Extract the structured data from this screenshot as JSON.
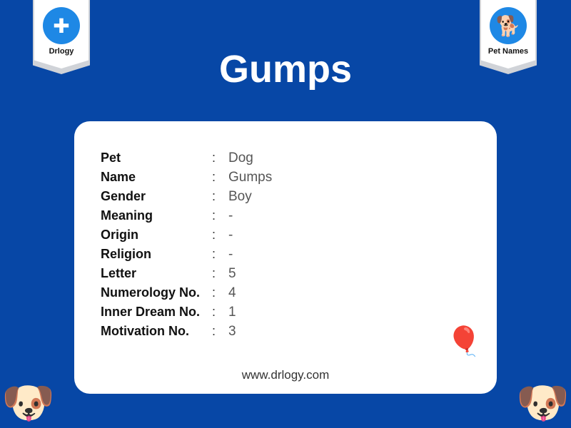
{
  "title": "Gumps",
  "badges": {
    "left": "Drlogy",
    "right": "Pet Names"
  },
  "rows": [
    {
      "key": "Pet",
      "value": "Dog"
    },
    {
      "key": "Name",
      "value": "Gumps"
    },
    {
      "key": "Gender",
      "value": "Boy"
    },
    {
      "key": "Meaning",
      "value": "-"
    },
    {
      "key": "Origin",
      "value": "-"
    },
    {
      "key": "Religion",
      "value": "-"
    },
    {
      "key": "Letter",
      "value": "5"
    },
    {
      "key": "Numerology No.",
      "value": "4"
    },
    {
      "key": "Inner Dream No.",
      "value": "1"
    },
    {
      "key": "Motivation No.",
      "value": "3"
    }
  ],
  "separator": ":",
  "url": "www.drlogy.com"
}
